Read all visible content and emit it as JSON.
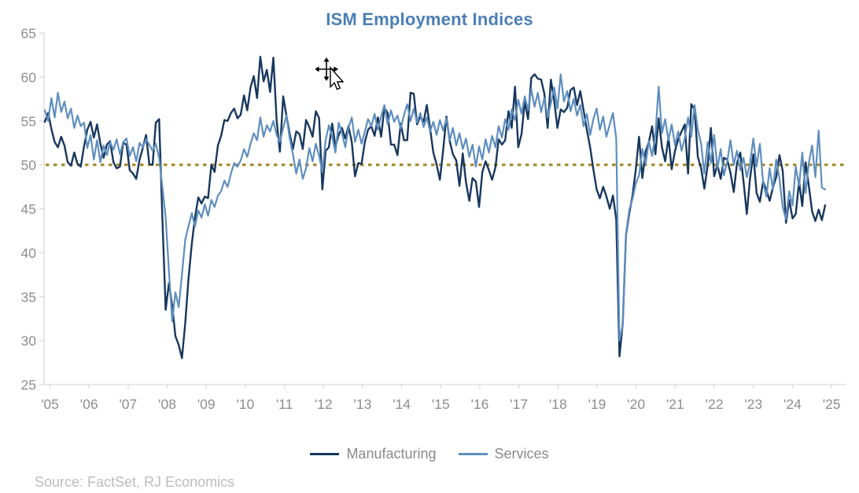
{
  "title": {
    "text": "ISM Employment Indices",
    "color": "#4a7fb5"
  },
  "source_note": "Source: FactSet, RJ Economics",
  "legend": {
    "items": [
      {
        "label": "Manufacturing",
        "color": "#17375e"
      },
      {
        "label": "Services",
        "color": "#5e8ebf"
      }
    ]
  },
  "cursor": {
    "type": "move-with-pointer",
    "approx_x": 420,
    "approx_y": 93
  },
  "chart_data": {
    "type": "line",
    "title": "ISM Employment Indices",
    "frequency": "monthly",
    "x_range": [
      "2005",
      "2025"
    ],
    "x_tick_labels": [
      "'05",
      "'06",
      "'07",
      "'08",
      "'09",
      "'10",
      "'11",
      "'12",
      "'13",
      "'14",
      "'15",
      "'16",
      "'17",
      "'18",
      "'19",
      "'20",
      "'21",
      "'22",
      "'23",
      "'24",
      "'25"
    ],
    "ylim": [
      25,
      65
    ],
    "y_ticks": [
      25,
      30,
      35,
      40,
      45,
      50,
      55,
      60,
      65
    ],
    "grid": false,
    "legend_position": "bottom",
    "axis_color": "#d9d9d9",
    "tick_label_color": "#8e8e8e",
    "reference_line": {
      "value": 50,
      "style": "dotted",
      "color": "#a88b2f"
    },
    "series": [
      {
        "name": "Manufacturing",
        "color": "#17375e",
        "values": [
          54.9,
          55.9,
          54.1,
          52.6,
          52.0,
          53.2,
          52.2,
          50.3,
          49.9,
          51.4,
          50.1,
          49.8,
          52.1,
          54.0,
          54.9,
          53.1,
          54.6,
          52.4,
          50.8,
          52.3,
          52.7,
          50.3,
          49.6,
          49.8,
          52.5,
          52.3,
          49.4,
          49.0,
          48.4,
          50.6,
          51.9,
          53.4,
          50.1,
          50.0,
          54.8,
          55.2,
          44.0,
          33.5,
          36.5,
          34.0,
          30.5,
          29.5,
          28.0,
          32.0,
          37.0,
          41.0,
          44.0,
          46.3,
          45.6,
          46.4,
          46.2,
          50.0,
          49.2,
          52.2,
          53.3,
          55.1,
          55.0,
          55.9,
          56.4,
          55.3,
          55.7,
          57.9,
          56.2,
          58.8,
          60.1,
          57.6,
          62.3,
          59.5,
          60.8,
          58.3,
          62.2,
          55.0,
          51.5,
          57.8,
          55.6,
          53.5,
          51.8,
          53.8,
          53.5,
          51.8,
          55.1,
          54.3,
          53.2,
          56.1,
          55.3,
          47.2,
          51.6,
          52.0,
          54.7,
          52.1,
          53.4,
          54.2,
          53.0,
          54.4,
          52.6,
          48.7,
          50.2,
          50.1,
          52.6,
          54.0,
          54.4,
          53.3,
          55.4,
          53.2,
          56.5,
          55.9,
          52.3,
          52.3,
          51.1,
          54.7,
          52.8,
          52.8,
          58.2,
          58.1,
          54.6,
          55.5,
          54.9,
          56.8,
          54.1,
          51.4,
          50.0,
          48.3,
          51.7,
          55.5,
          52.7,
          51.2,
          50.5,
          47.6,
          51.3,
          48.0,
          45.9,
          48.5,
          48.1,
          45.2,
          49.2,
          50.4,
          49.4,
          48.3,
          49.7,
          52.9,
          52.3,
          52.8,
          56.1,
          54.2,
          58.9,
          52.0,
          53.5,
          57.2,
          55.2,
          59.9,
          60.3,
          59.8,
          59.7,
          58.1,
          54.2,
          59.7,
          57.3,
          54.2,
          56.3,
          56.0,
          56.5,
          58.5,
          58.8,
          56.8,
          58.4,
          56.2,
          54.0,
          52.0,
          49.5,
          47.2,
          46.2,
          47.5,
          46.4,
          45.0,
          46.5,
          43.8,
          28.2,
          32.0,
          42.0,
          44.5,
          46.5,
          49.5,
          53.2,
          48.5,
          51.5,
          52.6,
          54.4,
          51.2,
          55.3,
          52.0,
          50.4,
          53.1,
          49.5,
          51.6,
          52.9,
          53.8,
          54.6,
          49.0,
          56.9,
          56.3,
          50.9,
          49.6,
          47.3,
          49.9,
          54.2,
          48.7,
          50.0,
          48.4,
          50.8,
          50.6,
          49.1,
          46.9,
          50.2,
          51.4,
          48.1,
          44.4,
          48.5,
          51.2,
          46.8,
          45.8,
          48.1,
          47.1,
          45.9,
          47.4,
          48.6,
          51.1,
          49.3,
          43.4,
          46.0,
          43.9,
          44.4,
          48.1,
          45.3,
          50.3,
          47.6,
          44.7,
          43.6,
          44.9,
          43.7,
          45.4
        ]
      },
      {
        "name": "Services",
        "color": "#5e8ebf",
        "values": [
          56.2,
          55.0,
          57.6,
          55.4,
          58.2,
          56.0,
          57.2,
          55.3,
          56.4,
          54.2,
          55.6,
          54.4,
          54.8,
          51.9,
          53.4,
          50.6,
          52.8,
          50.3,
          52.2,
          51.1,
          52.6,
          51.7,
          52.9,
          51.2,
          52.6,
          53.0,
          51.0,
          52.0,
          50.4,
          52.5,
          52.0,
          52.9,
          52.3,
          51.6,
          52.4,
          50.8,
          47.5,
          44.0,
          38.0,
          32.2,
          35.5,
          33.8,
          37.5,
          41.5,
          43.0,
          44.5,
          43.0,
          44.8,
          44.0,
          45.5,
          44.2,
          46.0,
          45.2,
          46.5,
          47.0,
          48.2,
          47.5,
          49.0,
          50.2,
          49.8,
          50.5,
          51.8,
          50.9,
          52.4,
          53.6,
          52.8,
          55.4,
          53.2,
          54.5,
          53.8,
          55.0,
          53.4,
          52.6,
          54.2,
          55.6,
          53.0,
          51.2,
          49.0,
          50.6,
          48.4,
          49.6,
          51.9,
          50.4,
          52.4,
          51.0,
          49.2,
          52.8,
          54.5,
          53.2,
          51.4,
          54.8,
          53.6,
          52.0,
          54.2,
          55.4,
          52.6,
          54.0,
          52.4,
          53.8,
          55.2,
          54.4,
          55.8,
          54.0,
          55.5,
          56.8,
          54.6,
          56.2,
          54.9,
          55.6,
          54.1,
          55.7,
          56.9,
          55.0,
          56.4,
          54.8,
          55.9,
          54.3,
          55.4,
          53.8,
          54.9,
          53.4,
          55.1,
          53.9,
          55.3,
          52.8,
          54.2,
          52.2,
          53.6,
          51.8,
          53.0,
          50.9,
          52.3,
          49.8,
          52.1,
          50.6,
          52.9,
          51.4,
          53.3,
          52.0,
          54.4,
          53.1,
          55.2,
          54.0,
          56.3,
          55.1,
          57.4,
          55.8,
          57.8,
          56.2,
          58.6,
          56.6,
          58.2,
          56.0,
          57.6,
          55.4,
          57.0,
          58.8,
          56.4,
          60.3,
          57.2,
          58.4,
          56.1,
          57.5,
          55.6,
          56.8,
          54.4,
          55.8,
          53.4,
          55.2,
          56.4,
          54.0,
          55.5,
          53.2,
          54.6,
          55.9,
          53.0,
          30.0,
          31.8,
          42.1,
          44.9,
          46.1,
          47.9,
          48.8,
          51.8,
          50.1,
          52.7,
          51.0,
          53.5,
          58.9,
          53.6,
          55.2,
          52.8,
          54.6,
          52.2,
          53.8,
          51.6,
          53.0,
          55.4,
          53.2,
          56.8,
          54.0,
          52.4,
          49.0,
          52.6,
          50.2,
          53.4,
          49.6,
          51.8,
          48.8,
          50.4,
          52.8,
          50.0,
          51.6,
          49.4,
          50.8,
          48.6,
          50.2,
          53.0,
          49.8,
          52.4,
          48.0,
          46.4,
          49.6,
          47.2,
          50.6,
          48.4,
          45.2,
          43.8,
          47.0,
          45.4,
          49.8,
          47.6,
          51.4,
          46.8,
          50.2,
          52.2,
          48.6,
          53.9,
          47.4,
          47.2
        ]
      }
    ]
  }
}
